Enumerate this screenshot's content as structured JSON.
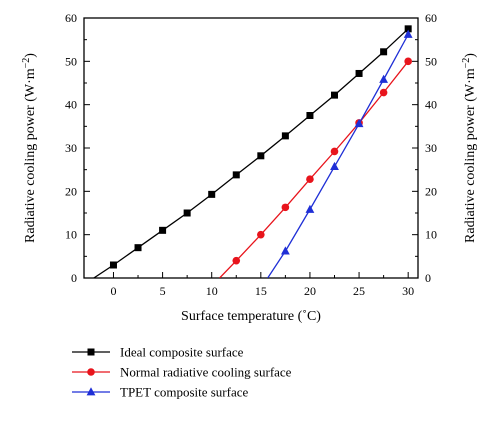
{
  "chart_data": {
    "type": "line",
    "title": "",
    "xlabel": "Surface temperature (˚C)",
    "ylabel_prefix": "Radiative cooling power (W·m",
    "ylabel_exp": "−2",
    "ylabel_suffix": ")",
    "xlim": [
      -3,
      31
    ],
    "ylim": [
      0,
      60
    ],
    "xticks": [
      0,
      5,
      10,
      15,
      20,
      25,
      30
    ],
    "yticks": [
      0,
      10,
      20,
      30,
      40,
      50,
      60
    ],
    "grid": false,
    "legend_position": "bottom-left",
    "series": [
      {
        "name": "Ideal composite surface",
        "color": "#000000",
        "marker": "square",
        "line_start": [
          -2.0,
          0
        ],
        "x": [
          0,
          2.5,
          5,
          7.5,
          10,
          12.5,
          15,
          17.5,
          20,
          22.5,
          25,
          27.5,
          30
        ],
        "y": [
          3,
          7,
          11,
          15,
          19.3,
          23.8,
          28.2,
          32.8,
          37.5,
          42.2,
          47.2,
          52.2,
          57.5
        ]
      },
      {
        "name": "Normal radiative cooling surface",
        "color": "#e8141c",
        "marker": "circle",
        "line_start": [
          10.8,
          0
        ],
        "x": [
          12.5,
          15,
          17.5,
          20,
          22.5,
          25,
          27.5,
          30
        ],
        "y": [
          4,
          10,
          16.3,
          22.8,
          29.2,
          35.8,
          42.8,
          50
        ]
      },
      {
        "name": "TPET composite surface",
        "color": "#1f2fd6",
        "marker": "triangle",
        "line_start": [
          15.7,
          0
        ],
        "x": [
          17.5,
          20,
          22.5,
          25,
          27.5,
          30
        ],
        "y": [
          6.2,
          15.8,
          25.7,
          35.6,
          45.8,
          56.2
        ]
      }
    ]
  }
}
